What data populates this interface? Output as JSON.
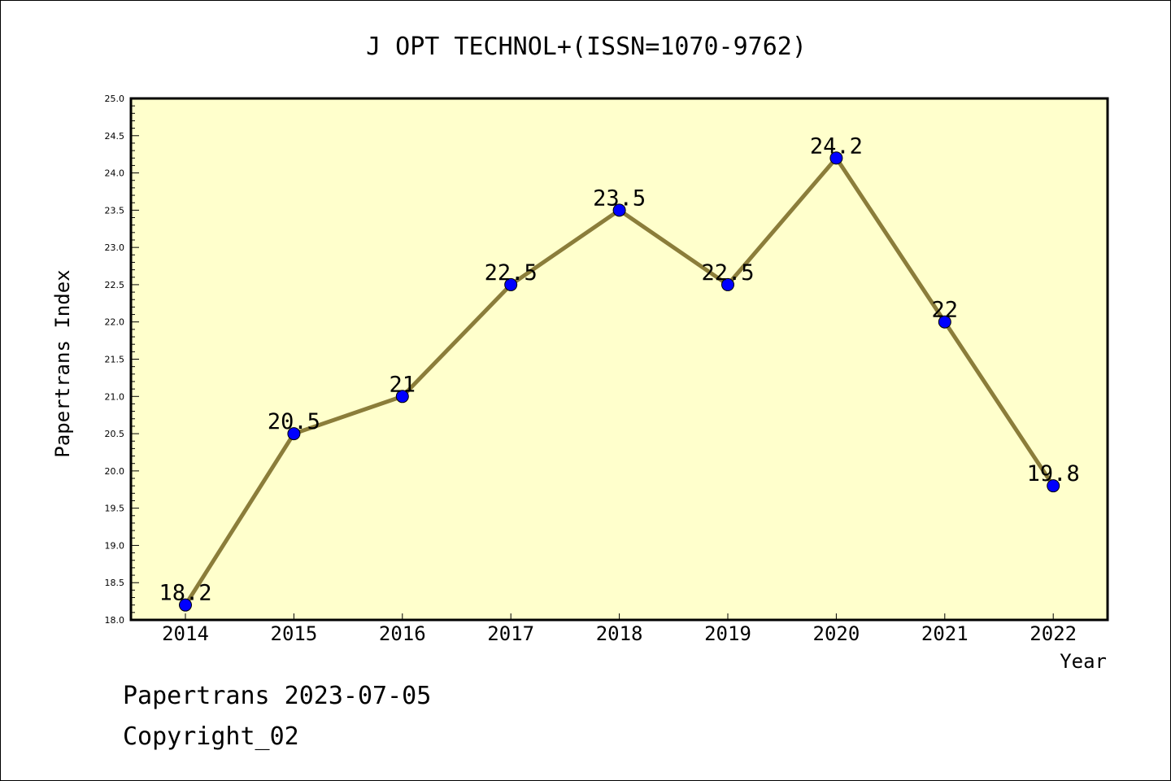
{
  "chart_data": {
    "type": "line",
    "title": "J OPT TECHNOL+(ISSN=1070-9762)",
    "xlabel": "Year",
    "ylabel": "Papertrans Index",
    "categories": [
      "2014",
      "2015",
      "2016",
      "2017",
      "2018",
      "2019",
      "2020",
      "2021",
      "2022"
    ],
    "values": [
      18.2,
      20.5,
      21,
      22.5,
      23.5,
      22.5,
      24.2,
      22,
      19.8
    ],
    "data_labels": [
      "18.2",
      "20.5",
      "21",
      "22.5",
      "23.5",
      "22.5",
      "24.2",
      "22",
      "19.8"
    ],
    "ylim": [
      18.0,
      25.0
    ],
    "yticks": [
      "18.0",
      "18.5",
      "19.0",
      "19.5",
      "20.0",
      "20.5",
      "21.0",
      "21.5",
      "22.0",
      "22.5",
      "23.0",
      "23.5",
      "24.0",
      "24.5",
      "25.0"
    ],
    "grid": false,
    "colors": {
      "plot_background": "#ffffcc",
      "line": "#8b7d3a",
      "marker": "#0000ff"
    }
  },
  "footer": {
    "line1": "Papertrans 2023-07-05",
    "line2": "Copyright_02"
  }
}
